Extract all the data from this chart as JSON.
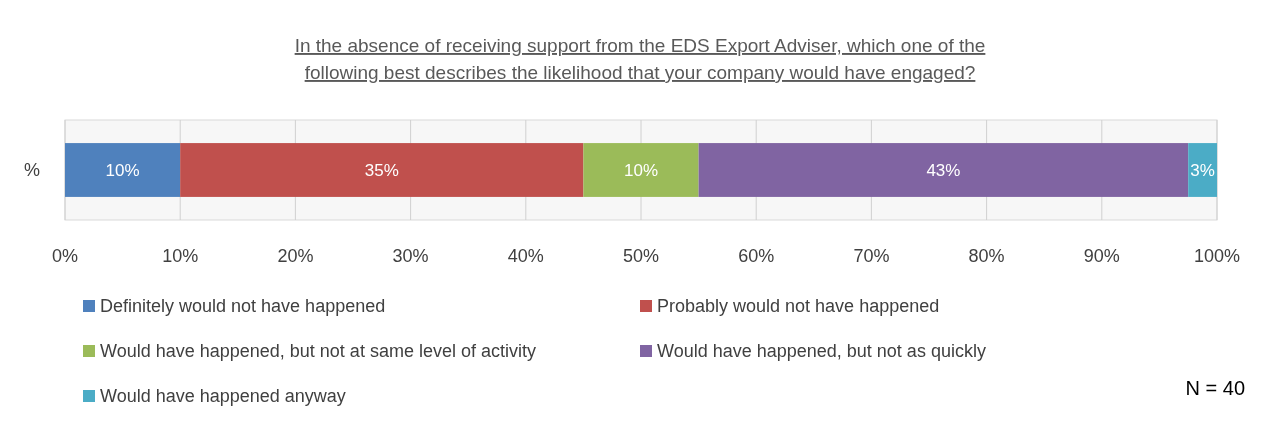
{
  "chart_data": {
    "type": "bar",
    "orientation": "horizontal",
    "stacked": true,
    "title": "In the absence of receiving support from the EDS Export Adviser, which one of the following best describes the likelihood that your company would have engaged?",
    "categories": [
      "%"
    ],
    "series": [
      {
        "name": "Definitely would not have happened",
        "color": "#4f81bd",
        "values": [
          10
        ],
        "value_labels": [
          "10%"
        ]
      },
      {
        "name": "Probably would not have happened",
        "color": "#c0504d",
        "values": [
          35
        ],
        "value_labels": [
          "35%"
        ]
      },
      {
        "name": "Would have happened, but not at same level of activity",
        "color": "#9bbb59",
        "values": [
          10
        ],
        "value_labels": [
          "10%"
        ]
      },
      {
        "name": "Would have happened, but not as quickly",
        "color": "#8064a2",
        "values": [
          42.5
        ],
        "value_labels": [
          "43%"
        ]
      },
      {
        "name": "Would have happened anyway",
        "color": "#4bacc6",
        "values": [
          2.5
        ],
        "value_labels": [
          "3%"
        ]
      }
    ],
    "xlim": [
      0,
      100
    ],
    "xticks": [
      {
        "value": 0,
        "label": "0%"
      },
      {
        "value": 10,
        "label": "10%"
      },
      {
        "value": 20,
        "label": "20%"
      },
      {
        "value": 30,
        "label": "30%"
      },
      {
        "value": 40,
        "label": "40%"
      },
      {
        "value": 50,
        "label": "50%"
      },
      {
        "value": 60,
        "label": "60%"
      },
      {
        "value": 70,
        "label": "70%"
      },
      {
        "value": 80,
        "label": "80%"
      },
      {
        "value": 90,
        "label": "90%"
      },
      {
        "value": 100,
        "label": "100%"
      }
    ],
    "grid": "x",
    "legend": "bottom",
    "annotations": [
      "N = 40"
    ]
  }
}
